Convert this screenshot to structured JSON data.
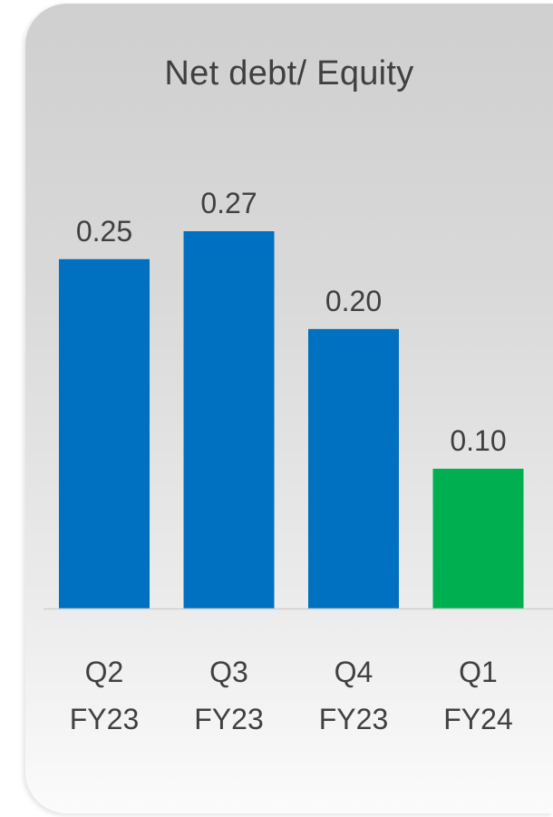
{
  "chart_data": {
    "type": "bar",
    "title": "Net debt/ Equity",
    "categories": [
      [
        "Q2",
        "FY23"
      ],
      [
        "Q3",
        "FY23"
      ],
      [
        "Q4",
        "FY23"
      ],
      [
        "Q1",
        "FY24"
      ]
    ],
    "values": [
      0.25,
      0.27,
      0.2,
      0.1
    ],
    "value_labels": [
      "0.25",
      "0.27",
      "0.20",
      "0.10"
    ],
    "bar_colors": [
      "#0070C0",
      "#0070C0",
      "#0070C0",
      "#00B050"
    ],
    "ylim": [
      0,
      0.27
    ],
    "grid": false,
    "legend": "none",
    "xlabel": "",
    "ylabel": ""
  },
  "colors": {
    "label_text": "#404040",
    "baseline": "#d0d0d0"
  }
}
